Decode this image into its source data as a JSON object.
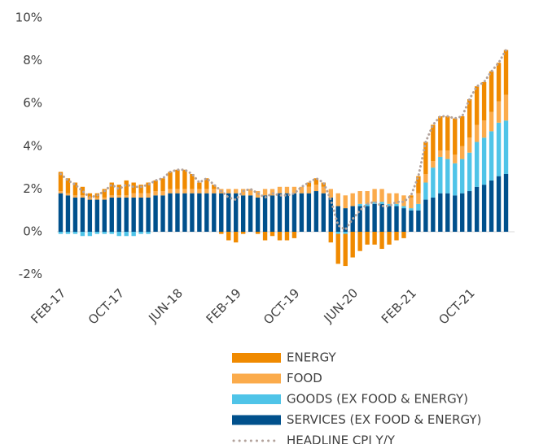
{
  "chart_data": {
    "type": "bar",
    "categories": [
      "FEB-17",
      null,
      null,
      null,
      null,
      null,
      null,
      null,
      "OCT-17",
      null,
      null,
      null,
      null,
      null,
      null,
      null,
      "JUN-18",
      null,
      null,
      null,
      null,
      null,
      null,
      null,
      "FEB-19",
      null,
      null,
      null,
      null,
      null,
      null,
      null,
      "OCT-19",
      null,
      null,
      null,
      null,
      null,
      null,
      null,
      "JUN-20",
      null,
      null,
      null,
      null,
      null,
      null,
      null,
      "FEB-21",
      null,
      null,
      null,
      null,
      null,
      null,
      null,
      "OCT-21",
      null,
      null,
      null,
      null,
      null
    ],
    "series": [
      {
        "name": "ENERGY",
        "color": "#f08a00",
        "values": [
          0.9,
          0.7,
          0.6,
          0.4,
          0.2,
          0.2,
          0.4,
          0.6,
          0.5,
          0.7,
          0.5,
          0.4,
          0.5,
          0.5,
          0.6,
          0.8,
          0.9,
          0.9,
          0.7,
          0.3,
          0.5,
          0.2,
          -0.1,
          -0.4,
          -0.5,
          -0.1,
          0,
          -0.1,
          -0.4,
          -0.2,
          -0.4,
          -0.4,
          -0.3,
          0,
          0.2,
          0.3,
          0.2,
          -0.5,
          -1.4,
          -1.5,
          -1.2,
          -0.9,
          -0.6,
          -0.6,
          -0.8,
          -0.6,
          -0.4,
          -0.3,
          0.1,
          0.8,
          1.5,
          1.7,
          1.6,
          1.6,
          1.7,
          1.4,
          1.8,
          1.8,
          1.8,
          1.9,
          1.8,
          2.1
        ]
      },
      {
        "name": "FOOD",
        "color": "#fbab4b",
        "values": [
          0.1,
          0.1,
          0.1,
          0.1,
          0.1,
          0.1,
          0.1,
          0.1,
          0.1,
          0.1,
          0.2,
          0.2,
          0.2,
          0.2,
          0.2,
          0.2,
          0.2,
          0.2,
          0.2,
          0.2,
          0.2,
          0.2,
          0.2,
          0.2,
          0.2,
          0.3,
          0.3,
          0.3,
          0.3,
          0.3,
          0.3,
          0.3,
          0.3,
          0.3,
          0.3,
          0.3,
          0.3,
          0.4,
          0.6,
          0.6,
          0.6,
          0.6,
          0.6,
          0.6,
          0.6,
          0.5,
          0.5,
          0.5,
          0.5,
          0.5,
          0.4,
          0.3,
          0.3,
          0.4,
          0.4,
          0.6,
          0.7,
          0.8,
          0.8,
          0.9,
          1.0,
          1.2
        ]
      },
      {
        "name": "GOODS (EX FOOD & ENERGY)",
        "color": "#4fc4e8",
        "values": [
          -0.1,
          -0.1,
          -0.1,
          -0.2,
          -0.2,
          -0.1,
          -0.1,
          -0.1,
          -0.2,
          -0.2,
          -0.2,
          -0.1,
          -0.1,
          0,
          0,
          0,
          0,
          0,
          0,
          0,
          0,
          0,
          0,
          0,
          0,
          0,
          0,
          0,
          0,
          0,
          0,
          0,
          0,
          0,
          0,
          0,
          0,
          0,
          -0.1,
          -0.1,
          0,
          0.1,
          0.1,
          0.1,
          0.1,
          0.1,
          0.1,
          0.1,
          0.1,
          0.3,
          0.8,
          1.4,
          1.7,
          1.6,
          1.5,
          1.6,
          1.8,
          2.1,
          2.2,
          2.3,
          2.5,
          2.5
        ]
      },
      {
        "name": "SERVICES (EX FOOD & ENERGY)",
        "color": "#00508c",
        "values": [
          1.8,
          1.7,
          1.6,
          1.6,
          1.5,
          1.5,
          1.5,
          1.6,
          1.6,
          1.6,
          1.6,
          1.6,
          1.6,
          1.7,
          1.7,
          1.8,
          1.8,
          1.8,
          1.8,
          1.8,
          1.8,
          1.8,
          1.8,
          1.8,
          1.8,
          1.7,
          1.7,
          1.6,
          1.7,
          1.7,
          1.8,
          1.8,
          1.8,
          1.8,
          1.8,
          1.9,
          1.8,
          1.6,
          1.2,
          1.1,
          1.2,
          1.2,
          1.2,
          1.3,
          1.3,
          1.2,
          1.2,
          1.1,
          1.0,
          1.0,
          1.5,
          1.6,
          1.8,
          1.8,
          1.7,
          1.8,
          1.9,
          2.1,
          2.2,
          2.4,
          2.6,
          2.7
        ]
      },
      {
        "name": "HEADLINE CPI Y/Y",
        "color": "#b3a39c",
        "type": "line",
        "values": [
          2.7,
          2.4,
          2.2,
          1.9,
          1.6,
          1.7,
          1.9,
          2.2,
          2.0,
          2.2,
          2.1,
          2.1,
          2.2,
          2.4,
          2.5,
          2.8,
          2.9,
          2.9,
          2.7,
          2.3,
          2.5,
          2.2,
          1.9,
          1.6,
          1.5,
          1.9,
          2.0,
          1.8,
          1.6,
          1.8,
          1.7,
          1.7,
          1.8,
          2.1,
          2.3,
          2.5,
          2.3,
          1.5,
          0.3,
          0.1,
          0.6,
          1.0,
          1.3,
          1.4,
          1.2,
          1.2,
          1.4,
          1.4,
          1.7,
          2.6,
          4.2,
          5.0,
          5.4,
          5.4,
          5.3,
          5.4,
          6.2,
          6.8,
          7.0,
          7.5,
          7.9,
          8.5
        ]
      }
    ],
    "ylim": [
      -2.4,
      10
    ],
    "yticks": [
      {
        "value": -2,
        "label": "-2%"
      },
      {
        "value": 0,
        "label": "0%"
      },
      {
        "value": 2,
        "label": "2%"
      },
      {
        "value": 4,
        "label": "4%"
      },
      {
        "value": 6,
        "label": "6%"
      },
      {
        "value": 8,
        "label": "8%"
      },
      {
        "value": 10,
        "label": "10%"
      }
    ],
    "grid": false
  }
}
